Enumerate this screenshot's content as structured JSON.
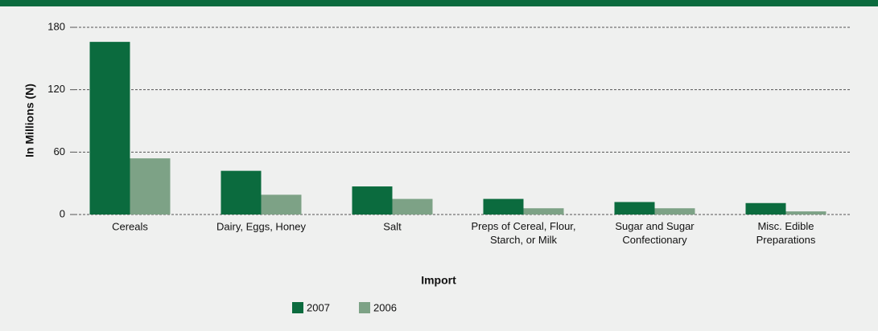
{
  "chart_data": {
    "type": "bar",
    "categories": [
      "Cereals",
      "Dairy, Eggs, Honey",
      "Salt",
      "Preps of Cereal, Flour,\nStarch, or Milk",
      "Sugar and Sugar\nConfectionary",
      "Misc. Edible\nPreparations"
    ],
    "series": [
      {
        "name": "2007",
        "color": "#0b6b3e",
        "values": [
          166,
          42,
          27,
          15,
          12,
          11
        ]
      },
      {
        "name": "2006",
        "color": "#7da286",
        "values": [
          54,
          19,
          15,
          6,
          6,
          3
        ]
      }
    ],
    "x_label": "Import",
    "y_label": "In Millions (N)",
    "ylim": [
      0,
      180
    ],
    "yticks": [
      0,
      60,
      120,
      180
    ],
    "grid": true
  }
}
